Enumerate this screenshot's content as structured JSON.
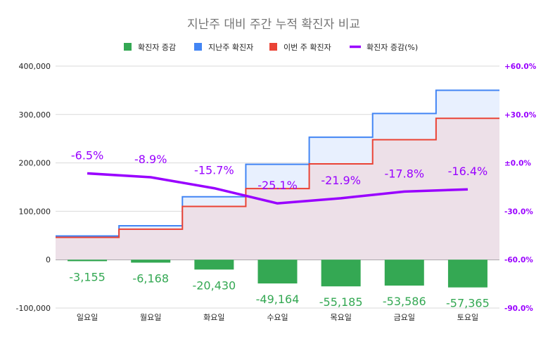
{
  "chart_data": {
    "type": "combo",
    "title": "지난주 대비 주간 누적 확진자 비교",
    "categories": [
      "일요일",
      "월요일",
      "화요일",
      "수요일",
      "목요일",
      "금요일",
      "토요일"
    ],
    "series": [
      {
        "name": "확진자 증감",
        "kind": "bar",
        "axis": "left",
        "values": [
          -3155,
          -6168,
          -20430,
          -49164,
          -55185,
          -53586,
          -57365
        ],
        "labels": [
          "-3,155",
          "-6,168",
          "-20,430",
          "-49,164",
          "-55,185",
          "-53,586",
          "-57,365"
        ]
      },
      {
        "name": "지난주 확진자",
        "kind": "stepped-area",
        "axis": "left",
        "values": [
          49000,
          70000,
          130000,
          197000,
          253000,
          302000,
          350000
        ]
      },
      {
        "name": "이번 주 확진자",
        "kind": "stepped-area",
        "axis": "left",
        "values": [
          46000,
          63000,
          110000,
          147000,
          198000,
          248000,
          292000
        ]
      },
      {
        "name": "확진자 증감(%)",
        "kind": "line",
        "axis": "right",
        "values": [
          -6.5,
          -8.9,
          -15.7,
          -25.1,
          -21.9,
          -17.8,
          -16.4
        ],
        "labels": [
          "-6.5%",
          "-8.9%",
          "-15.7%",
          "-25.1%",
          "-21.9%",
          "-17.8%",
          "-16.4%"
        ]
      }
    ],
    "y_left": {
      "min": -100000,
      "max": 400000,
      "ticks": [
        -100000,
        0,
        100000,
        200000,
        300000,
        400000
      ],
      "tick_labels": [
        "-100,000",
        "0",
        "100,000",
        "200,000",
        "300,000",
        "400,000"
      ]
    },
    "y_right": {
      "min": -90,
      "max": 60,
      "ticks": [
        -90,
        -60,
        -30,
        0,
        30,
        60
      ],
      "tick_labels": [
        "-90.0%",
        "-60.0%",
        "-30.0%",
        "±0.0%",
        "+30.0%",
        "+60.0%"
      ]
    },
    "grid": true,
    "legend_position": "top",
    "colors": {
      "bar": "#34a853",
      "last_week": "#4285f4",
      "last_week_fill": "#e8f0fe",
      "this_week": "#ea4335",
      "this_week_fill": "#ede0e8",
      "pct_line": "#9900ff",
      "right_axis": "#9900ff",
      "title": "#757575",
      "grid": "#d9d9d9"
    }
  }
}
